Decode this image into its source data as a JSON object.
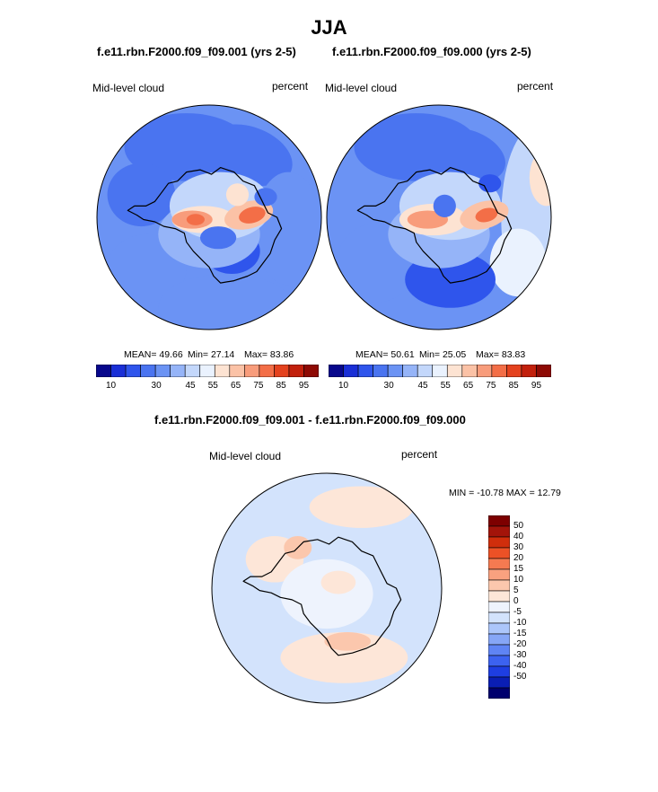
{
  "season": "JJA",
  "panels": [
    {
      "case_title": "f.e11.rbn.F2000.f09_f09.001 (yrs 2-5)",
      "field_label": "Mid-level cloud",
      "units_label": "percent",
      "mean_text": "MEAN=  49.66",
      "min_text": "Min=  27.14",
      "max_text": "Max=  83.86"
    },
    {
      "case_title": "f.e11.rbn.F2000.f09_f09.000 (yrs 2-5)",
      "field_label": "Mid-level cloud",
      "units_label": "percent",
      "mean_text": "MEAN=  50.61",
      "min_text": "Min=  25.05",
      "max_text": "Max=  83.83"
    }
  ],
  "diff": {
    "title": "f.e11.rbn.F2000.f09_f09.001 - f.e11.rbn.F2000.f09_f09.000",
    "field_label": "Mid-level cloud",
    "units_label": "percent",
    "minmax_text": "MIN = -10.78 MAX =  12.79"
  },
  "colors": {
    "abs_scale": [
      "#08088c",
      "#1a2fd6",
      "#2f55ec",
      "#4a74f0",
      "#6b93f4",
      "#95b4f8",
      "#c3d7fb",
      "#eaf2fe",
      "#fde3d2",
      "#fbc2a6",
      "#f89c7b",
      "#f36e47",
      "#e4421e",
      "#c2200c",
      "#8e0a04"
    ],
    "diff_scale": [
      "#00006e",
      "#0a1eb4",
      "#1e3ee2",
      "#3c62f0",
      "#5f84f4",
      "#86a6f6",
      "#acc6fa",
      "#d3e3fc",
      "#eef3fd",
      "#fde6d8",
      "#fbc7ad",
      "#f9a17f",
      "#f57a51",
      "#ec5126",
      "#d02e0c",
      "#a3140a",
      "#7d0000"
    ]
  },
  "chart_data": [
    {
      "type": "heatmap",
      "projection": "polar stereographic (South Pole)",
      "title": "f.e11.rbn.F2000.f09_f09.001 (yrs 2-5)",
      "variable": "Mid-level cloud",
      "units": "percent",
      "stats": {
        "mean": 49.66,
        "min": 27.14,
        "max": 83.86
      },
      "colorbar": {
        "levels": [
          5,
          10,
          15,
          20,
          25,
          30,
          35,
          40,
          45,
          50,
          55,
          60,
          65,
          70,
          75,
          80,
          85,
          90,
          95
        ],
        "tick_labels": [
          "10",
          "30",
          "45",
          "55",
          "65",
          "75",
          "85",
          "95"
        ]
      }
    },
    {
      "type": "heatmap",
      "projection": "polar stereographic (South Pole)",
      "title": "f.e11.rbn.F2000.f09_f09.000 (yrs 2-5)",
      "variable": "Mid-level cloud",
      "units": "percent",
      "stats": {
        "mean": 50.61,
        "min": 25.05,
        "max": 83.83
      },
      "colorbar": {
        "levels": [
          5,
          10,
          15,
          20,
          25,
          30,
          35,
          40,
          45,
          50,
          55,
          60,
          65,
          70,
          75,
          80,
          85,
          90,
          95
        ],
        "tick_labels": [
          "10",
          "30",
          "45",
          "55",
          "65",
          "75",
          "85",
          "95"
        ]
      }
    },
    {
      "type": "heatmap",
      "projection": "polar stereographic (South Pole)",
      "title": "f.e11.rbn.F2000.f09_f09.001 - f.e11.rbn.F2000.f09_f09.000",
      "variable": "Mid-level cloud",
      "units": "percent",
      "stats": {
        "min": -10.78,
        "max": 12.79
      },
      "colorbar": {
        "levels": [
          -50,
          -40,
          -30,
          -20,
          -15,
          -10,
          -5,
          0,
          5,
          10,
          15,
          20,
          30,
          40,
          50
        ],
        "tick_labels": [
          "50",
          "40",
          "30",
          "20",
          "15",
          "10",
          "5",
          "0",
          "-5",
          "-10",
          "-15",
          "-20",
          "-30",
          "-40",
          "-50"
        ]
      }
    }
  ]
}
